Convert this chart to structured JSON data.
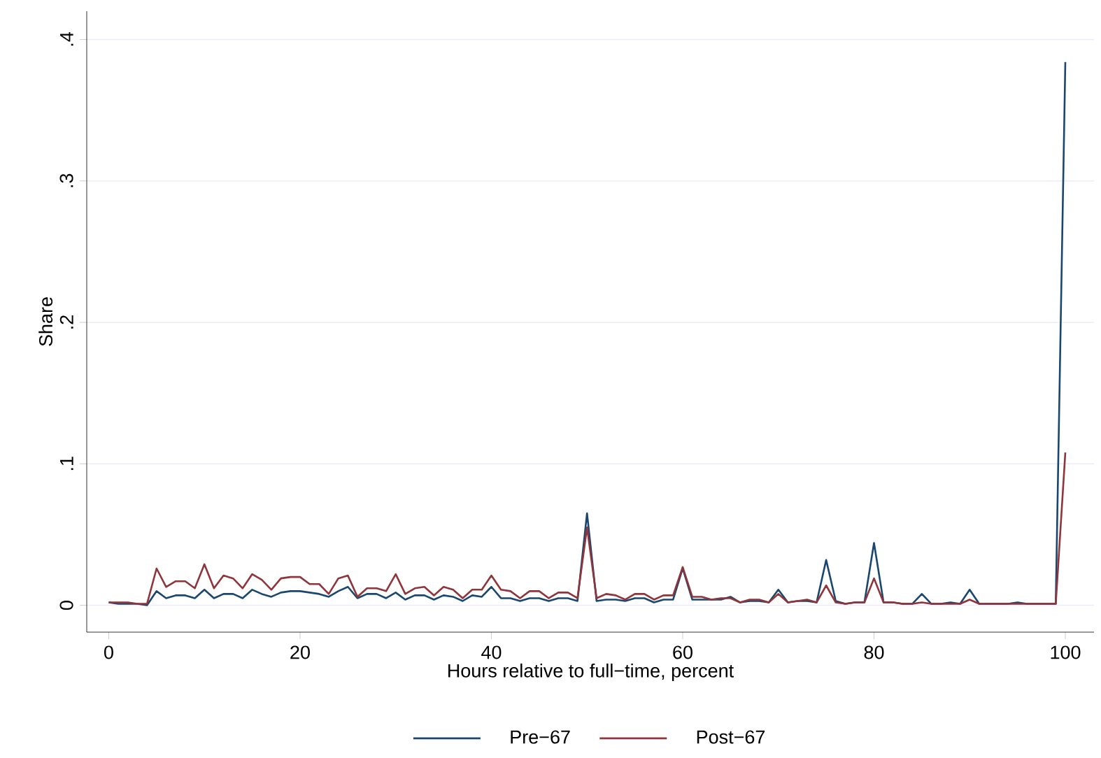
{
  "chart_data": {
    "type": "line",
    "xlabel": "Hours relative to full−time, percent",
    "ylabel": "Share",
    "x": [
      0,
      1,
      2,
      3,
      4,
      5,
      6,
      7,
      8,
      9,
      10,
      11,
      12,
      13,
      14,
      15,
      16,
      17,
      18,
      19,
      20,
      21,
      22,
      23,
      24,
      25,
      26,
      27,
      28,
      29,
      30,
      31,
      32,
      33,
      34,
      35,
      36,
      37,
      38,
      39,
      40,
      41,
      42,
      43,
      44,
      45,
      46,
      47,
      48,
      49,
      50,
      51,
      52,
      53,
      54,
      55,
      56,
      57,
      58,
      59,
      60,
      61,
      62,
      63,
      64,
      65,
      66,
      67,
      68,
      69,
      70,
      71,
      72,
      73,
      74,
      75,
      76,
      77,
      78,
      79,
      80,
      81,
      82,
      83,
      84,
      85,
      86,
      87,
      88,
      89,
      90,
      91,
      92,
      93,
      94,
      95,
      96,
      97,
      98,
      99,
      100
    ],
    "series": [
      {
        "name": "Pre−67",
        "color": "#1a476f",
        "values": [
          0.002,
          0.001,
          0.001,
          0.001,
          0.0,
          0.01,
          0.005,
          0.007,
          0.007,
          0.005,
          0.011,
          0.005,
          0.008,
          0.008,
          0.005,
          0.011,
          0.008,
          0.006,
          0.009,
          0.01,
          0.01,
          0.009,
          0.008,
          0.006,
          0.01,
          0.013,
          0.005,
          0.008,
          0.008,
          0.005,
          0.009,
          0.004,
          0.007,
          0.007,
          0.004,
          0.007,
          0.006,
          0.003,
          0.007,
          0.006,
          0.013,
          0.005,
          0.005,
          0.003,
          0.005,
          0.005,
          0.003,
          0.005,
          0.005,
          0.003,
          0.065,
          0.003,
          0.004,
          0.004,
          0.003,
          0.005,
          0.005,
          0.002,
          0.004,
          0.004,
          0.026,
          0.004,
          0.004,
          0.004,
          0.004,
          0.006,
          0.002,
          0.003,
          0.003,
          0.002,
          0.011,
          0.002,
          0.003,
          0.003,
          0.002,
          0.032,
          0.003,
          0.001,
          0.002,
          0.002,
          0.044,
          0.002,
          0.002,
          0.001,
          0.001,
          0.008,
          0.001,
          0.001,
          0.002,
          0.001,
          0.011,
          0.001,
          0.001,
          0.001,
          0.001,
          0.002,
          0.001,
          0.001,
          0.001,
          0.001,
          0.384
        ]
      },
      {
        "name": "Post−67",
        "color": "#90353b",
        "values": [
          0.002,
          0.002,
          0.002,
          0.001,
          0.001,
          0.026,
          0.013,
          0.017,
          0.017,
          0.012,
          0.029,
          0.012,
          0.021,
          0.019,
          0.012,
          0.022,
          0.018,
          0.011,
          0.019,
          0.02,
          0.02,
          0.015,
          0.015,
          0.008,
          0.019,
          0.021,
          0.006,
          0.012,
          0.012,
          0.01,
          0.022,
          0.008,
          0.012,
          0.013,
          0.007,
          0.013,
          0.011,
          0.005,
          0.011,
          0.011,
          0.021,
          0.011,
          0.01,
          0.005,
          0.01,
          0.01,
          0.005,
          0.009,
          0.009,
          0.005,
          0.055,
          0.005,
          0.008,
          0.007,
          0.004,
          0.008,
          0.008,
          0.004,
          0.007,
          0.007,
          0.027,
          0.006,
          0.006,
          0.004,
          0.005,
          0.005,
          0.002,
          0.004,
          0.004,
          0.002,
          0.008,
          0.002,
          0.003,
          0.004,
          0.002,
          0.014,
          0.002,
          0.001,
          0.002,
          0.002,
          0.019,
          0.002,
          0.002,
          0.001,
          0.001,
          0.002,
          0.001,
          0.001,
          0.001,
          0.001,
          0.004,
          0.001,
          0.001,
          0.001,
          0.001,
          0.001,
          0.001,
          0.001,
          0.001,
          0.001,
          0.108
        ]
      }
    ],
    "xlim": [
      -2.3,
      103
    ],
    "ylim": [
      -0.019,
      0.42
    ],
    "xticks": [
      0,
      20,
      40,
      60,
      80,
      100
    ],
    "yticks": [
      {
        "value": 0,
        "label": "0"
      },
      {
        "value": 0.1,
        "label": ".1"
      },
      {
        "value": 0.2,
        "label": ".2"
      },
      {
        "value": 0.3,
        "label": ".3"
      },
      {
        "value": 0.4,
        "label": ".4"
      }
    ],
    "grid": "y",
    "legend": "bottom",
    "marker": "none",
    "line_style": "solid"
  }
}
